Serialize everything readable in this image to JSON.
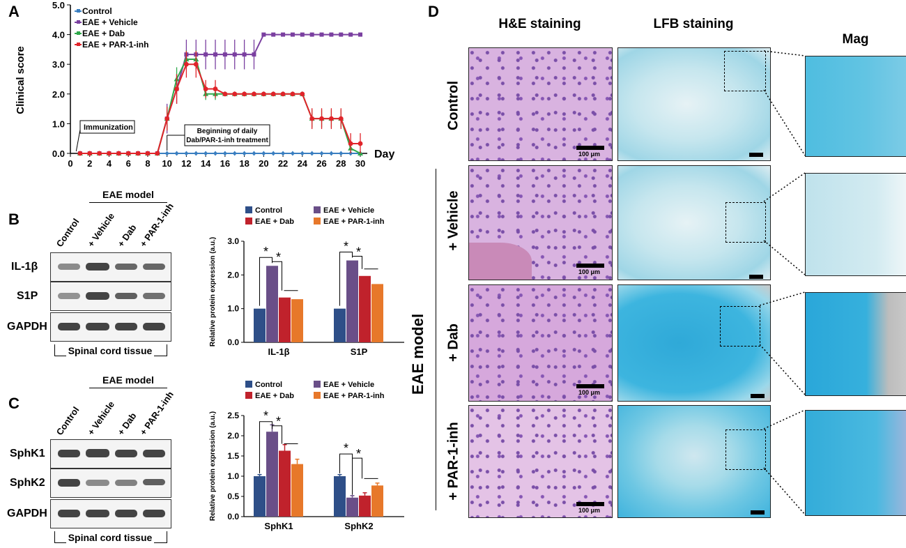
{
  "panels": {
    "A": "A",
    "B": "B",
    "C": "C",
    "D": "D"
  },
  "chart_data": [
    {
      "type": "line",
      "panel": "A",
      "ylabel": "Clinical score",
      "xlabel": "Day",
      "ylim": [
        0,
        5
      ],
      "yticks": [
        "0.0",
        "1.0",
        "2.0",
        "3.0",
        "4.0",
        "5.0"
      ],
      "xticks": [
        "0",
        "2",
        "4",
        "6",
        "8",
        "10",
        "12",
        "14",
        "16",
        "18",
        "20",
        "22",
        "24",
        "26",
        "28",
        "30"
      ],
      "annotations": {
        "immunization": "Immunization",
        "treatment_line1": "Beginning of daily",
        "treatment_line2": "Dab/PAR-1-inh treatment"
      },
      "series": [
        {
          "name": "Control",
          "color": "#3a7fc1",
          "x": [
            1,
            2,
            3,
            4,
            5,
            6,
            7,
            8,
            9,
            10,
            11,
            12,
            13,
            14,
            15,
            16,
            17,
            18,
            19,
            20,
            21,
            22,
            23,
            24,
            25,
            26,
            27,
            28,
            29,
            30
          ],
          "values": [
            0,
            0,
            0,
            0,
            0,
            0,
            0,
            0,
            0,
            0,
            0,
            0,
            0,
            0,
            0,
            0,
            0,
            0,
            0,
            0,
            0,
            0,
            0,
            0,
            0,
            0,
            0,
            0,
            0,
            0
          ]
        },
        {
          "name": "EAE + Vehicle",
          "color": "#7a3fa0",
          "x": [
            1,
            2,
            3,
            4,
            5,
            6,
            7,
            8,
            9,
            10,
            11,
            12,
            13,
            14,
            15,
            16,
            17,
            18,
            19,
            20,
            21,
            22,
            23,
            24,
            25,
            26,
            27,
            28,
            29,
            30
          ],
          "values": [
            0,
            0,
            0,
            0,
            0,
            0,
            0,
            0,
            0,
            1.17,
            2.17,
            3.33,
            3.33,
            3.33,
            3.33,
            3.33,
            3.33,
            3.33,
            3.33,
            4,
            4,
            4,
            4,
            4,
            4,
            4,
            4,
            4,
            4,
            4
          ],
          "err": [
            0,
            0,
            0,
            0,
            0,
            0,
            0,
            0,
            0,
            0.5,
            0.5,
            0.5,
            0.5,
            0.5,
            0.5,
            0.5,
            0.5,
            0.5,
            0.5,
            0,
            0,
            0,
            0,
            0,
            0,
            0,
            0,
            0,
            0,
            0
          ]
        },
        {
          "name": "EAE + Dab",
          "color": "#2ea84a",
          "x": [
            1,
            2,
            3,
            4,
            5,
            6,
            7,
            8,
            9,
            10,
            11,
            12,
            13,
            14,
            15,
            16,
            17,
            18,
            19,
            20,
            21,
            22,
            23,
            24,
            25,
            26,
            27,
            28,
            29,
            30
          ],
          "values": [
            0,
            0,
            0,
            0,
            0,
            0,
            0,
            0,
            0,
            1.17,
            2.5,
            3.17,
            3.17,
            2,
            2,
            2,
            2,
            2,
            2,
            2,
            2,
            2,
            2,
            2,
            1.17,
            1.17,
            1.17,
            1.17,
            0.17,
            0
          ],
          "err": [
            0,
            0,
            0,
            0,
            0,
            0,
            0,
            0,
            0,
            0.4,
            0.4,
            0.3,
            0.3,
            0.2,
            0.2,
            0,
            0,
            0,
            0,
            0,
            0,
            0,
            0,
            0,
            0.3,
            0.3,
            0.3,
            0.3,
            0.2,
            0
          ]
        },
        {
          "name": "EAE + PAR-1-inh",
          "color": "#e0242a",
          "x": [
            1,
            2,
            3,
            4,
            5,
            6,
            7,
            8,
            9,
            10,
            11,
            12,
            13,
            14,
            15,
            16,
            17,
            18,
            19,
            20,
            21,
            22,
            23,
            24,
            25,
            26,
            27,
            28,
            29,
            30
          ],
          "values": [
            0,
            0,
            0,
            0,
            0,
            0,
            0,
            0,
            0,
            1.17,
            2.17,
            3,
            3,
            2.17,
            2.17,
            2,
            2,
            2,
            2,
            2,
            2,
            2,
            2,
            2,
            1.17,
            1.17,
            1.17,
            1.17,
            0.33,
            0.33
          ],
          "err": [
            0,
            0,
            0,
            0,
            0,
            0,
            0,
            0,
            0,
            0.4,
            0.5,
            0.45,
            0.45,
            0.3,
            0.3,
            0,
            0,
            0,
            0,
            0,
            0,
            0,
            0,
            0,
            0.35,
            0.35,
            0.35,
            0.35,
            0.35,
            0.35
          ]
        }
      ]
    },
    {
      "type": "bar",
      "panel": "B",
      "ylabel": "Relative protein expression (a.u.)",
      "ylim": [
        0,
        3
      ],
      "yticks": [
        "0.0",
        "1.0",
        "2.0",
        "3.0"
      ],
      "categories": [
        "IL-1β",
        "S1P"
      ],
      "series": [
        {
          "name": "Control",
          "color": "#2e4f88",
          "values": [
            1.0,
            1.0
          ]
        },
        {
          "name": "EAE + Vehicle",
          "color": "#6a4f88",
          "values": [
            2.27,
            2.43
          ]
        },
        {
          "name": "EAE + Dab",
          "color": "#c0222c",
          "values": [
            1.33,
            1.97
          ]
        },
        {
          "name": "EAE + PAR-1-inh",
          "color": "#e7782a",
          "values": [
            1.28,
            1.73
          ]
        }
      ],
      "significance": "*"
    },
    {
      "type": "bar",
      "panel": "C",
      "ylabel": "Relative protein expression (a.u.)",
      "ylim": [
        0,
        2.5
      ],
      "yticks": [
        "0.0",
        "0.5",
        "1.0",
        "1.5",
        "2.0",
        "2.5"
      ],
      "categories": [
        "SphK1",
        "SphK2"
      ],
      "series": [
        {
          "name": "Control",
          "color": "#2e4f88",
          "values": [
            1.0,
            1.0
          ],
          "err": [
            0.04,
            0.04
          ]
        },
        {
          "name": "EAE + Vehicle",
          "color": "#6a4f88",
          "values": [
            2.1,
            0.47
          ],
          "err": [
            0.17,
            0.05
          ]
        },
        {
          "name": "EAE + Dab",
          "color": "#c0222c",
          "values": [
            1.63,
            0.52
          ],
          "err": [
            0.15,
            0.07
          ]
        },
        {
          "name": "EAE + PAR-1-inh",
          "color": "#e7782a",
          "values": [
            1.3,
            0.77
          ],
          "err": [
            0.12,
            0.06
          ]
        }
      ],
      "significance": "*"
    }
  ],
  "blots": {
    "eae_model": "EAE model",
    "lanes": [
      "Control",
      "+ Vehicle",
      "+ Dab",
      "+ PAR-1-inh"
    ],
    "tissue": "Spinal cord tissue",
    "B_rows": [
      "IL-1β",
      "S1P",
      "GAPDH"
    ],
    "C_rows": [
      "SphK1",
      "SphK2",
      "GAPDH"
    ]
  },
  "histology": {
    "col_he": "H&E staining",
    "col_lfb": "LFB staining",
    "col_mag": "Mag",
    "row_control": "Control",
    "row_vehicle": "+ Vehicle",
    "row_dab": "+ Dab",
    "row_par": "+ PAR-1-inh",
    "group": "EAE model",
    "scale": "100 μm"
  }
}
